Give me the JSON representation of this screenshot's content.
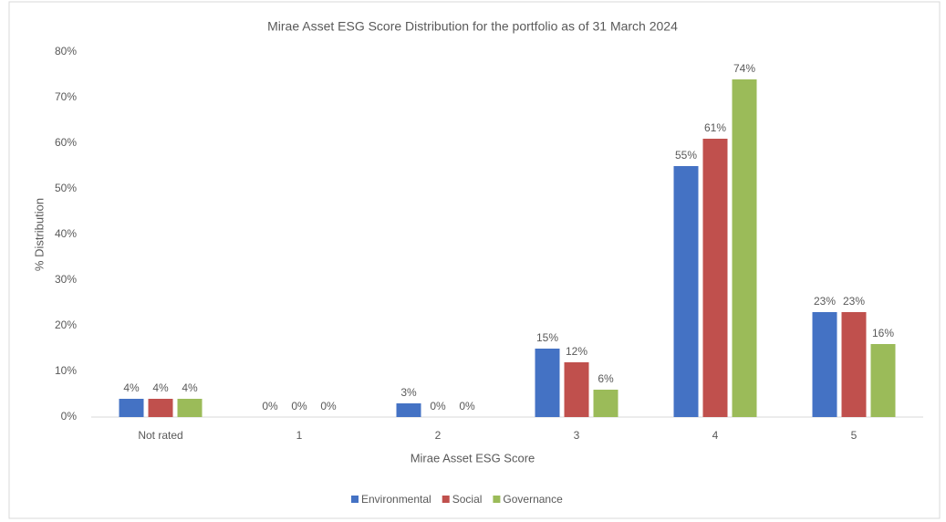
{
  "chart_data": {
    "type": "bar",
    "title": "Mirae Asset ESG Score Distribution for the portfolio as of 31 March 2024",
    "x_label": "Mirae Asset ESG Score",
    "y_label": "% Distribution",
    "categories": [
      "Not rated",
      "1",
      "2",
      "3",
      "4",
      "5"
    ],
    "series": [
      {
        "name": "Environmental",
        "color": "#4472c4",
        "values": [
          4,
          0,
          3,
          15,
          55,
          23
        ],
        "value_labels": [
          "4%",
          "0%",
          "3%",
          "15%",
          "55%",
          "23%"
        ]
      },
      {
        "name": "Social",
        "color": "#c0504d",
        "values": [
          4,
          0,
          0,
          12,
          61,
          23
        ],
        "value_labels": [
          "4%",
          "0%",
          "0%",
          "12%",
          "61%",
          "23%"
        ]
      },
      {
        "name": "Governance",
        "color": "#9bbb59",
        "values": [
          4,
          0,
          0,
          6,
          74,
          16
        ],
        "value_labels": [
          "4%",
          "0%",
          "0%",
          "6%",
          "74%",
          "16%"
        ]
      }
    ],
    "ylim": [
      0,
      80
    ],
    "yticks": [
      {
        "value": 0,
        "label": "0%"
      },
      {
        "value": 10,
        "label": "10%"
      },
      {
        "value": 20,
        "label": "20%"
      },
      {
        "value": 30,
        "label": "30%"
      },
      {
        "value": 40,
        "label": "40%"
      },
      {
        "value": 50,
        "label": "50%"
      },
      {
        "value": 60,
        "label": "60%"
      },
      {
        "value": 70,
        "label": "70%"
      },
      {
        "value": 80,
        "label": "80%"
      }
    ],
    "grid": false,
    "legend": "bottom"
  }
}
